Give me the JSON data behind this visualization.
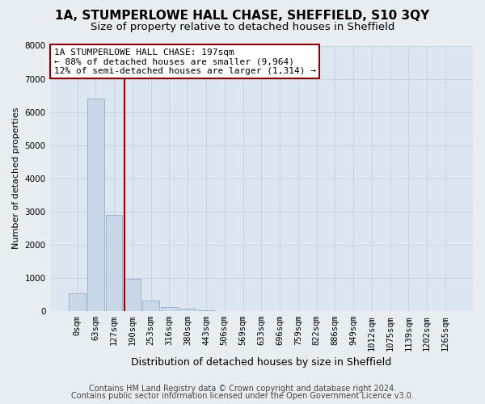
{
  "title": "1A, STUMPERLOWE HALL CHASE, SHEFFIELD, S10 3QY",
  "subtitle": "Size of property relative to detached houses in Sheffield",
  "xlabel": "Distribution of detached houses by size in Sheffield",
  "ylabel": "Number of detached properties",
  "bins": [
    "0sqm",
    "63sqm",
    "127sqm",
    "190sqm",
    "253sqm",
    "316sqm",
    "380sqm",
    "443sqm",
    "506sqm",
    "569sqm",
    "633sqm",
    "696sqm",
    "759sqm",
    "822sqm",
    "886sqm",
    "949sqm",
    "1012sqm",
    "1075sqm",
    "1139sqm",
    "1202sqm",
    "1265sqm"
  ],
  "values": [
    530,
    6400,
    2900,
    975,
    310,
    130,
    70,
    20,
    8,
    4,
    2,
    1,
    1,
    0,
    0,
    0,
    0,
    0,
    0,
    0,
    0
  ],
  "bar_color": "#c8d8e8",
  "bar_edge_color": "#9ab4cc",
  "line_color": "#8B0000",
  "annotation_text": "1A STUMPERLOWE HALL CHASE: 197sqm\n← 88% of detached houses are smaller (9,964)\n12% of semi-detached houses are larger (1,314) →",
  "annotation_box_color": "#ffffff",
  "annotation_box_edge_color": "#8B0000",
  "ylim": [
    0,
    8000
  ],
  "yticks": [
    0,
    1000,
    2000,
    3000,
    4000,
    5000,
    6000,
    7000,
    8000
  ],
  "footnote1": "Contains HM Land Registry data © Crown copyright and database right 2024.",
  "footnote2": "Contains public sector information licensed under the Open Government Licence v3.0.",
  "bg_color": "#e8edf2",
  "plot_bg_color": "#dce6f0",
  "grid_color": "#c0ccd8",
  "title_fontsize": 11,
  "subtitle_fontsize": 9.5,
  "annotation_fontsize": 8,
  "footnote_fontsize": 7,
  "tick_fontsize": 7.5,
  "ylabel_fontsize": 8,
  "xlabel_fontsize": 9
}
